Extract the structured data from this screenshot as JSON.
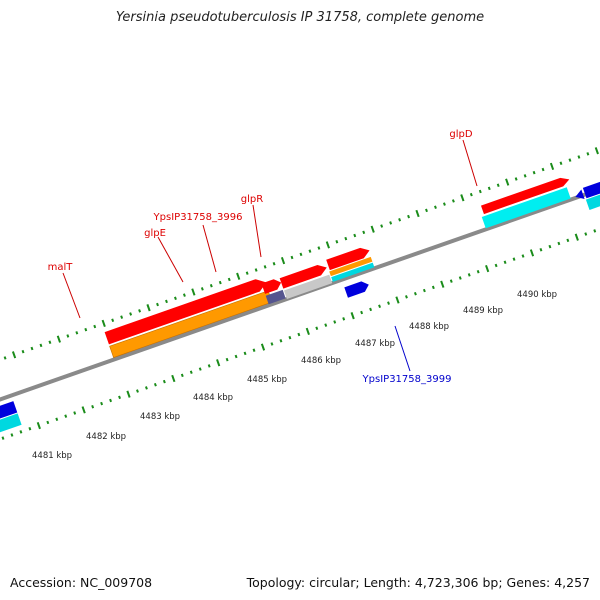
{
  "header": {
    "title": "Yersinia pseudotuberculosis IP 31758, complete genome"
  },
  "footer": {
    "accession": "Accession: NC_009708",
    "topology": "Topology: circular; Length: 4,723,306 bp; Genes: 4,257"
  },
  "map": {
    "ticks": [
      "4481 kbp",
      "4482 kbp",
      "4483 kbp",
      "4484 kbp",
      "4485 kbp",
      "4486 kbp",
      "4487 kbp",
      "4488 kbp",
      "4489 kbp",
      "4490 kbp"
    ],
    "gene_labels": {
      "malT": "malT",
      "glpE": "glpE",
      "yps3996": "YpsIP31758_3996",
      "glpR": "glpR",
      "glpD": "glpD",
      "yps3999": "YpsIP31758_3999"
    }
  },
  "colors": {
    "cds": "#ff0000",
    "orange_feature": "#ff9900",
    "cyan_feature": "#00e5ee",
    "blue_feature": "#0000dd",
    "gray_feature": "#c8c8c8",
    "slate_feature": "#55558f",
    "backbone": "#888888",
    "tick_green": "#1a8c1a",
    "label_red": "#dd0000",
    "label_blue": "#0000cc"
  }
}
